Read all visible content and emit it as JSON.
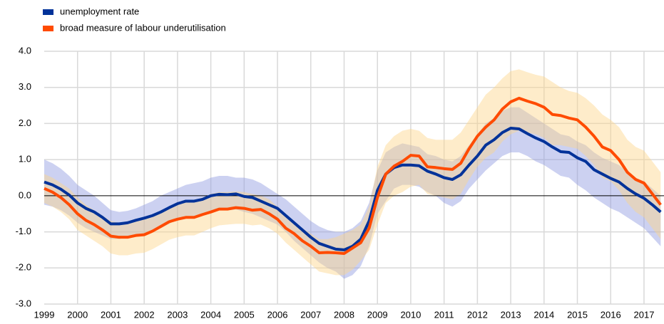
{
  "chart_data": {
    "type": "line",
    "x": [
      1999,
      1999.25,
      1999.5,
      1999.75,
      2000,
      2000.25,
      2000.5,
      2000.75,
      2001,
      2001.25,
      2001.5,
      2001.75,
      2002,
      2002.25,
      2002.5,
      2002.75,
      2003,
      2003.25,
      2003.5,
      2003.75,
      2004,
      2004.25,
      2004.5,
      2004.75,
      2005,
      2005.25,
      2005.5,
      2005.75,
      2006,
      2006.25,
      2006.5,
      2006.75,
      2007,
      2007.25,
      2007.5,
      2007.75,
      2008,
      2008.25,
      2008.5,
      2008.75,
      2009,
      2009.25,
      2009.5,
      2009.75,
      2010,
      2010.25,
      2010.5,
      2010.75,
      2011,
      2011.25,
      2011.5,
      2011.75,
      2012,
      2012.25,
      2012.5,
      2012.75,
      2013,
      2013.25,
      2013.5,
      2013.75,
      2014,
      2014.25,
      2014.5,
      2014.75,
      2015,
      2015.25,
      2015.5,
      2015.75,
      2016,
      2016.25,
      2016.5,
      2016.75,
      2017,
      2017.25,
      2017.5
    ],
    "series": [
      {
        "name": "unemployment rate",
        "color": "#003299",
        "band_color": "#8f98e0",
        "values": [
          0.38,
          0.3,
          0.18,
          0.02,
          -0.2,
          -0.35,
          -0.45,
          -0.6,
          -0.78,
          -0.78,
          -0.75,
          -0.68,
          -0.62,
          -0.55,
          -0.45,
          -0.33,
          -0.22,
          -0.15,
          -0.15,
          -0.1,
          0.0,
          0.04,
          0.03,
          0.05,
          -0.02,
          -0.05,
          -0.15,
          -0.25,
          -0.35,
          -0.55,
          -0.75,
          -0.95,
          -1.15,
          -1.32,
          -1.4,
          -1.48,
          -1.5,
          -1.4,
          -1.2,
          -0.7,
          0.15,
          0.6,
          0.78,
          0.85,
          0.85,
          0.83,
          0.68,
          0.6,
          0.5,
          0.45,
          0.58,
          0.85,
          1.1,
          1.4,
          1.55,
          1.75,
          1.87,
          1.85,
          1.72,
          1.6,
          1.5,
          1.35,
          1.22,
          1.2,
          1.05,
          0.95,
          0.72,
          0.6,
          0.48,
          0.38,
          0.2,
          0.05,
          -0.07,
          -0.25,
          -0.45
        ],
        "upper": [
          1.0,
          0.9,
          0.75,
          0.55,
          0.3,
          0.15,
          0.0,
          -0.2,
          -0.4,
          -0.45,
          -0.42,
          -0.35,
          -0.25,
          -0.15,
          0.0,
          0.1,
          0.2,
          0.3,
          0.35,
          0.4,
          0.5,
          0.55,
          0.55,
          0.5,
          0.5,
          0.45,
          0.35,
          0.2,
          0.05,
          -0.1,
          -0.3,
          -0.5,
          -0.7,
          -0.85,
          -0.95,
          -1.0,
          -1.0,
          -0.9,
          -0.7,
          -0.2,
          0.7,
          1.2,
          1.35,
          1.45,
          1.4,
          1.35,
          1.15,
          1.1,
          1.0,
          0.95,
          1.1,
          1.4,
          1.7,
          2.0,
          2.15,
          2.35,
          2.45,
          2.45,
          2.3,
          2.15,
          2.0,
          1.85,
          1.7,
          1.65,
          1.5,
          1.4,
          1.2,
          1.05,
          0.95,
          0.85,
          0.65,
          0.5,
          0.4,
          0.2,
          0.0
        ],
        "lower": [
          -0.25,
          -0.3,
          -0.4,
          -0.55,
          -0.75,
          -0.9,
          -1.0,
          -1.1,
          -1.2,
          -1.2,
          -1.15,
          -1.1,
          -1.05,
          -0.98,
          -0.9,
          -0.78,
          -0.65,
          -0.6,
          -0.6,
          -0.55,
          -0.45,
          -0.4,
          -0.4,
          -0.38,
          -0.45,
          -0.5,
          -0.6,
          -0.7,
          -0.8,
          -1.0,
          -1.25,
          -1.45,
          -1.65,
          -1.85,
          -2.0,
          -2.1,
          -2.3,
          -2.2,
          -1.95,
          -1.4,
          -0.5,
          -0.15,
          0.2,
          0.3,
          0.3,
          0.25,
          0.1,
          0.0,
          -0.2,
          -0.3,
          -0.15,
          0.2,
          0.45,
          0.7,
          0.9,
          1.1,
          1.2,
          1.2,
          1.1,
          0.95,
          0.85,
          0.7,
          0.55,
          0.5,
          0.3,
          0.15,
          -0.05,
          -0.2,
          -0.35,
          -0.45,
          -0.6,
          -0.75,
          -0.9,
          -1.15,
          -1.4
        ]
      },
      {
        "name": "broad measure of labour underutilisation",
        "color": "#ff4b00",
        "band_color": "#fdd58a",
        "values": [
          0.2,
          0.1,
          -0.05,
          -0.25,
          -0.5,
          -0.68,
          -0.8,
          -0.95,
          -1.12,
          -1.15,
          -1.15,
          -1.1,
          -1.08,
          -0.98,
          -0.85,
          -0.72,
          -0.65,
          -0.6,
          -0.6,
          -0.52,
          -0.45,
          -0.37,
          -0.37,
          -0.33,
          -0.35,
          -0.4,
          -0.38,
          -0.5,
          -0.65,
          -0.9,
          -1.05,
          -1.25,
          -1.4,
          -1.58,
          -1.57,
          -1.58,
          -1.6,
          -1.45,
          -1.3,
          -0.9,
          -0.05,
          0.6,
          0.82,
          0.95,
          1.12,
          1.1,
          0.8,
          0.78,
          0.75,
          0.73,
          0.9,
          1.3,
          1.65,
          1.9,
          2.1,
          2.4,
          2.6,
          2.7,
          2.62,
          2.55,
          2.45,
          2.25,
          2.22,
          2.15,
          2.1,
          1.9,
          1.65,
          1.35,
          1.25,
          1.0,
          0.65,
          0.45,
          0.35,
          0.05,
          -0.25
        ],
        "upper": [
          0.6,
          0.5,
          0.35,
          0.2,
          -0.05,
          -0.25,
          -0.4,
          -0.55,
          -0.7,
          -0.75,
          -0.72,
          -0.68,
          -0.62,
          -0.55,
          -0.45,
          -0.3,
          -0.2,
          -0.15,
          -0.12,
          -0.05,
          0.05,
          0.1,
          0.1,
          0.12,
          0.1,
          0.05,
          0.0,
          -0.1,
          -0.3,
          -0.5,
          -0.7,
          -0.9,
          -1.05,
          -1.2,
          -1.2,
          -1.15,
          -1.05,
          -0.95,
          -0.8,
          -0.3,
          0.8,
          1.4,
          1.65,
          1.8,
          1.85,
          1.8,
          1.6,
          1.55,
          1.55,
          1.55,
          1.75,
          2.1,
          2.45,
          2.8,
          3.0,
          3.25,
          3.45,
          3.5,
          3.42,
          3.35,
          3.3,
          3.15,
          3.0,
          2.9,
          2.85,
          2.7,
          2.5,
          2.25,
          2.1,
          1.9,
          1.55,
          1.35,
          1.25,
          0.95,
          0.65
        ],
        "lower": [
          -0.2,
          -0.3,
          -0.45,
          -0.65,
          -0.95,
          -1.1,
          -1.25,
          -1.4,
          -1.6,
          -1.65,
          -1.65,
          -1.6,
          -1.58,
          -1.48,
          -1.35,
          -1.22,
          -1.15,
          -1.1,
          -1.1,
          -1.0,
          -0.9,
          -0.82,
          -0.8,
          -0.78,
          -0.78,
          -0.82,
          -0.8,
          -0.9,
          -1.05,
          -1.3,
          -1.5,
          -1.7,
          -1.9,
          -2.1,
          -2.15,
          -2.2,
          -2.2,
          -2.05,
          -1.8,
          -1.5,
          -0.8,
          -0.2,
          0.0,
          0.1,
          0.25,
          0.3,
          0.05,
          0.0,
          -0.05,
          -0.1,
          0.05,
          0.45,
          0.8,
          1.05,
          1.2,
          1.5,
          1.7,
          1.8,
          1.75,
          1.7,
          1.6,
          1.4,
          1.4,
          1.35,
          1.3,
          1.1,
          0.85,
          0.5,
          0.4,
          0.15,
          -0.2,
          -0.45,
          -0.6,
          -0.9,
          -1.2
        ]
      }
    ],
    "xlim": [
      1999,
      2017.6
    ],
    "xticks": [
      1999,
      2000,
      2001,
      2002,
      2003,
      2004,
      2005,
      2006,
      2007,
      2008,
      2009,
      2010,
      2011,
      2012,
      2013,
      2014,
      2015,
      2016,
      2017
    ],
    "ylim": [
      -3,
      4
    ],
    "yticks": [
      {
        "value": -3,
        "label": "-3.0"
      },
      {
        "value": -2,
        "label": "-2.0"
      },
      {
        "value": -1,
        "label": "-1.0"
      },
      {
        "value": 0,
        "label": "0.0"
      },
      {
        "value": 1,
        "label": "1.0"
      },
      {
        "value": 2,
        "label": "2.0"
      },
      {
        "value": 3,
        "label": "3.0"
      },
      {
        "value": 4,
        "label": "4.0"
      }
    ],
    "grid": true,
    "legend": "top-left"
  }
}
